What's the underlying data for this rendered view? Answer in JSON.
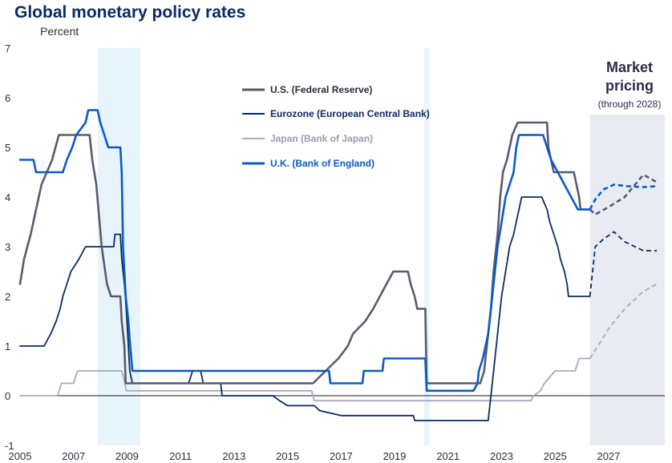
{
  "chart_data": {
    "type": "line",
    "title": "Global monetary policy rates",
    "ylabel": "Percent",
    "xlabel": "",
    "ylim": [
      -1,
      7
    ],
    "xlim": [
      2005,
      2029.1
    ],
    "y_ticks": [
      -1,
      0,
      1,
      2,
      3,
      4,
      5,
      6,
      7
    ],
    "x_ticks": [
      2005,
      2007,
      2009,
      2011,
      2013,
      2015,
      2017,
      2019,
      2021,
      2023,
      2025,
      2027
    ],
    "grid": false,
    "zero_line": true,
    "legend_position": "top-center",
    "shaded_periods": [
      {
        "start": 2007.9,
        "end": 2009.5
      },
      {
        "start": 2020.1,
        "end": 2020.3
      }
    ],
    "forecast": {
      "title_line1": "Market",
      "title_line2": "pricing",
      "subtitle": "(through 2028)",
      "start": 2026.3,
      "end": 2029.1
    },
    "series": [
      {
        "name": "U.S. (Federal Reserve)",
        "color": "#5a5a6e",
        "values": [
          [
            2005.0,
            2.25
          ],
          [
            2005.15,
            2.75
          ],
          [
            2005.4,
            3.25
          ],
          [
            2005.6,
            3.75
          ],
          [
            2005.8,
            4.25
          ],
          [
            2006.0,
            4.5
          ],
          [
            2006.2,
            4.75
          ],
          [
            2006.45,
            5.25
          ],
          [
            2007.6,
            5.25
          ],
          [
            2007.7,
            4.75
          ],
          [
            2007.85,
            4.25
          ],
          [
            2008.05,
            3.0
          ],
          [
            2008.25,
            2.25
          ],
          [
            2008.4,
            2.0
          ],
          [
            2008.75,
            2.0
          ],
          [
            2008.8,
            1.5
          ],
          [
            2008.9,
            1.0
          ],
          [
            2008.95,
            0.25
          ],
          [
            2015.95,
            0.25
          ],
          [
            2016.9,
            0.75
          ],
          [
            2017.25,
            1.0
          ],
          [
            2017.45,
            1.25
          ],
          [
            2017.9,
            1.5
          ],
          [
            2018.2,
            1.75
          ],
          [
            2018.45,
            2.0
          ],
          [
            2018.7,
            2.25
          ],
          [
            2018.95,
            2.5
          ],
          [
            2019.5,
            2.5
          ],
          [
            2019.6,
            2.25
          ],
          [
            2019.75,
            2.0
          ],
          [
            2019.85,
            1.75
          ],
          [
            2020.15,
            1.75
          ],
          [
            2020.2,
            0.25
          ],
          [
            2022.2,
            0.25
          ],
          [
            2022.35,
            0.5
          ],
          [
            2022.45,
            1.0
          ],
          [
            2022.6,
            1.75
          ],
          [
            2022.7,
            2.5
          ],
          [
            2022.85,
            3.25
          ],
          [
            2022.95,
            4.0
          ],
          [
            2023.05,
            4.5
          ],
          [
            2023.2,
            4.75
          ],
          [
            2023.3,
            5.0
          ],
          [
            2023.4,
            5.25
          ],
          [
            2023.6,
            5.5
          ],
          [
            2024.7,
            5.5
          ],
          [
            2024.75,
            5.0
          ],
          [
            2024.85,
            4.75
          ],
          [
            2024.95,
            4.5
          ],
          [
            2025.7,
            4.5
          ],
          [
            2025.8,
            4.25
          ],
          [
            2025.9,
            4.0
          ],
          [
            2025.95,
            3.75
          ],
          [
            2026.3,
            3.75
          ]
        ],
        "forecast_values": [
          [
            2026.3,
            3.75
          ],
          [
            2026.5,
            3.65
          ],
          [
            2027.0,
            3.8
          ],
          [
            2027.6,
            4.0
          ],
          [
            2028.3,
            4.45
          ],
          [
            2028.8,
            4.3
          ]
        ]
      },
      {
        "name": "Eurozone (European Central Bank)",
        "color": "#0b2a63",
        "values": [
          [
            2005.0,
            1.0
          ],
          [
            2005.9,
            1.0
          ],
          [
            2006.15,
            1.25
          ],
          [
            2006.35,
            1.5
          ],
          [
            2006.5,
            1.75
          ],
          [
            2006.6,
            2.0
          ],
          [
            2006.75,
            2.25
          ],
          [
            2006.9,
            2.5
          ],
          [
            2007.2,
            2.75
          ],
          [
            2007.45,
            3.0
          ],
          [
            2008.5,
            3.0
          ],
          [
            2008.55,
            3.25
          ],
          [
            2008.75,
            3.25
          ],
          [
            2008.8,
            2.75
          ],
          [
            2008.9,
            2.25
          ],
          [
            2008.97,
            1.75
          ],
          [
            2009.05,
            1.0
          ],
          [
            2009.1,
            0.5
          ],
          [
            2009.2,
            0.25
          ],
          [
            2011.3,
            0.25
          ],
          [
            2011.45,
            0.5
          ],
          [
            2011.75,
            0.5
          ],
          [
            2011.85,
            0.25
          ],
          [
            2012.5,
            0.25
          ],
          [
            2012.55,
            0.0
          ],
          [
            2014.45,
            0.0
          ],
          [
            2014.7,
            -0.1
          ],
          [
            2015.0,
            -0.2
          ],
          [
            2016.0,
            -0.2
          ],
          [
            2016.2,
            -0.3
          ],
          [
            2017.0,
            -0.4
          ],
          [
            2019.7,
            -0.4
          ],
          [
            2019.75,
            -0.5
          ],
          [
            2022.5,
            -0.5
          ],
          [
            2022.6,
            0.0
          ],
          [
            2022.75,
            0.75
          ],
          [
            2022.9,
            1.5
          ],
          [
            2023.0,
            2.0
          ],
          [
            2023.15,
            2.5
          ],
          [
            2023.3,
            3.0
          ],
          [
            2023.45,
            3.25
          ],
          [
            2023.55,
            3.5
          ],
          [
            2023.65,
            3.75
          ],
          [
            2023.75,
            4.0
          ],
          [
            2024.5,
            4.0
          ],
          [
            2024.7,
            3.75
          ],
          [
            2024.8,
            3.5
          ],
          [
            2024.95,
            3.25
          ],
          [
            2025.1,
            3.0
          ],
          [
            2025.2,
            2.75
          ],
          [
            2025.35,
            2.5
          ],
          [
            2025.45,
            2.25
          ],
          [
            2025.5,
            2.0
          ],
          [
            2026.3,
            2.0
          ]
        ],
        "forecast_values": [
          [
            2026.3,
            2.0
          ],
          [
            2026.5,
            3.0
          ],
          [
            2026.8,
            3.15
          ],
          [
            2027.2,
            3.3
          ],
          [
            2027.6,
            3.1
          ],
          [
            2028.3,
            2.92
          ],
          [
            2028.8,
            2.92
          ]
        ]
      },
      {
        "name": "Japan (Bank of Japan)",
        "color": "#a7a9bd",
        "values": [
          [
            2005.0,
            0.0
          ],
          [
            2006.4,
            0.0
          ],
          [
            2006.55,
            0.25
          ],
          [
            2007.0,
            0.25
          ],
          [
            2007.15,
            0.5
          ],
          [
            2008.8,
            0.5
          ],
          [
            2008.9,
            0.3
          ],
          [
            2008.97,
            0.1
          ],
          [
            2015.9,
            0.1
          ],
          [
            2016.0,
            -0.1
          ],
          [
            2024.1,
            -0.1
          ],
          [
            2024.2,
            0.0
          ],
          [
            2024.45,
            0.1
          ],
          [
            2024.6,
            0.25
          ],
          [
            2025.0,
            0.5
          ],
          [
            2025.75,
            0.5
          ],
          [
            2025.9,
            0.75
          ],
          [
            2026.3,
            0.75
          ]
        ],
        "forecast_values": [
          [
            2026.3,
            0.75
          ],
          [
            2026.6,
            1.0
          ],
          [
            2027.0,
            1.35
          ],
          [
            2027.6,
            1.75
          ],
          [
            2028.3,
            2.1
          ],
          [
            2028.8,
            2.25
          ]
        ]
      },
      {
        "name": "U.K. (Bank of England)",
        "color": "#0a5bc4",
        "values": [
          [
            2005.0,
            4.75
          ],
          [
            2005.5,
            4.75
          ],
          [
            2005.6,
            4.5
          ],
          [
            2006.6,
            4.5
          ],
          [
            2006.75,
            4.75
          ],
          [
            2006.95,
            5.0
          ],
          [
            2007.1,
            5.25
          ],
          [
            2007.45,
            5.5
          ],
          [
            2007.55,
            5.75
          ],
          [
            2007.9,
            5.75
          ],
          [
            2008.0,
            5.5
          ],
          [
            2008.15,
            5.25
          ],
          [
            2008.3,
            5.0
          ],
          [
            2008.75,
            5.0
          ],
          [
            2008.8,
            4.5
          ],
          [
            2008.85,
            3.0
          ],
          [
            2008.95,
            2.0
          ],
          [
            2009.05,
            1.5
          ],
          [
            2009.12,
            1.0
          ],
          [
            2009.2,
            0.5
          ],
          [
            2016.55,
            0.5
          ],
          [
            2016.6,
            0.25
          ],
          [
            2017.8,
            0.25
          ],
          [
            2017.85,
            0.5
          ],
          [
            2018.55,
            0.5
          ],
          [
            2018.6,
            0.75
          ],
          [
            2020.15,
            0.75
          ],
          [
            2020.2,
            0.1
          ],
          [
            2021.95,
            0.1
          ],
          [
            2022.1,
            0.25
          ],
          [
            2022.15,
            0.5
          ],
          [
            2022.3,
            0.75
          ],
          [
            2022.4,
            1.0
          ],
          [
            2022.5,
            1.25
          ],
          [
            2022.6,
            1.75
          ],
          [
            2022.7,
            2.25
          ],
          [
            2022.85,
            3.0
          ],
          [
            2023.0,
            3.5
          ],
          [
            2023.15,
            4.0
          ],
          [
            2023.3,
            4.25
          ],
          [
            2023.45,
            4.5
          ],
          [
            2023.55,
            5.0
          ],
          [
            2023.65,
            5.25
          ],
          [
            2024.55,
            5.25
          ],
          [
            2024.7,
            5.0
          ],
          [
            2024.85,
            4.75
          ],
          [
            2025.1,
            4.5
          ],
          [
            2025.35,
            4.25
          ],
          [
            2025.6,
            4.0
          ],
          [
            2025.85,
            3.75
          ],
          [
            2026.3,
            3.75
          ]
        ],
        "forecast_values": [
          [
            2026.3,
            3.75
          ],
          [
            2026.5,
            3.95
          ],
          [
            2026.8,
            4.15
          ],
          [
            2027.2,
            4.25
          ],
          [
            2027.7,
            4.22
          ],
          [
            2028.3,
            4.2
          ],
          [
            2028.8,
            4.22
          ]
        ]
      }
    ]
  }
}
